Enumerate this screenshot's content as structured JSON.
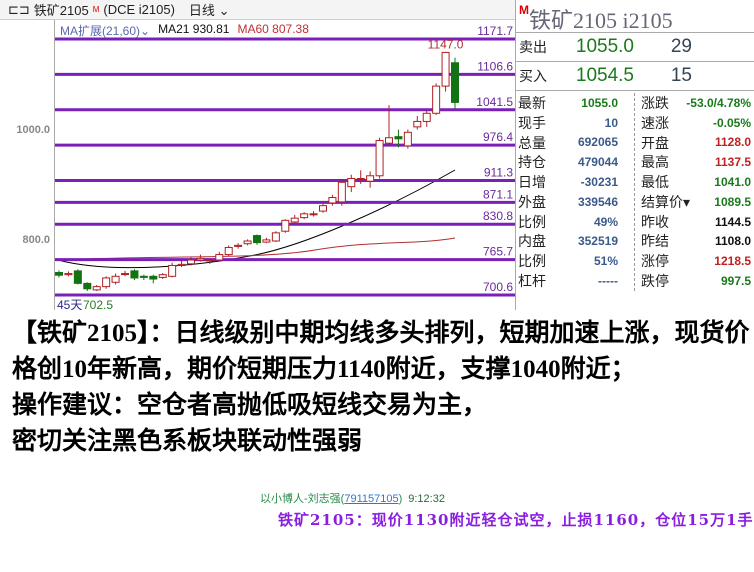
{
  "header": {
    "symbol": "铁矿2105",
    "flag": "M",
    "exchange": "(DCE i2105)",
    "period": "日线"
  },
  "indicator": {
    "name": "MA扩展(21,60)",
    "ma21": "MA21 930.81",
    "ma60": "MA60 807.38"
  },
  "axis": {
    "left_labels": [
      "1000.0",
      "800.0"
    ],
    "days": "45天",
    "low_label": "702.5",
    "high_label": "1147.0"
  },
  "levels": [
    "1171.7",
    "1106.6",
    "1041.5",
    "976.4",
    "911.3",
    "871.1",
    "830.8",
    "765.7",
    "700.6"
  ],
  "colors": {
    "level_line": "#7a1fb8",
    "up": "#b02020",
    "down": "#127312",
    "ma21": "#000000",
    "ma60": "#b03030"
  },
  "chart_data": {
    "type": "candlestick",
    "ylim": [
      700.6,
      1171.7
    ],
    "candles": [
      [
        742,
        737,
        746,
        733
      ],
      [
        738,
        740,
        744,
        735
      ],
      [
        745,
        722,
        748,
        720
      ],
      [
        722,
        712,
        724,
        708
      ],
      [
        710,
        716,
        719,
        708
      ],
      [
        716,
        732,
        735,
        712
      ],
      [
        724,
        735,
        740,
        720
      ],
      [
        740,
        740,
        745,
        735
      ],
      [
        745,
        732,
        748,
        728
      ],
      [
        735,
        733,
        738,
        728
      ],
      [
        735,
        730,
        738,
        722
      ],
      [
        733,
        738,
        741,
        730
      ],
      [
        735,
        755,
        760,
        733
      ],
      [
        755,
        757,
        765,
        752
      ],
      [
        758,
        765,
        770,
        755
      ],
      [
        765,
        768,
        775,
        762
      ],
      [
        765,
        765,
        768,
        758
      ],
      [
        765,
        775,
        780,
        762
      ],
      [
        775,
        788,
        792,
        772
      ],
      [
        790,
        792,
        796,
        786
      ],
      [
        795,
        800,
        803,
        792
      ],
      [
        810,
        797,
        812,
        793
      ],
      [
        798,
        802,
        806,
        796
      ],
      [
        800,
        815,
        818,
        798
      ],
      [
        818,
        838,
        840,
        815
      ],
      [
        835,
        842,
        848,
        832
      ],
      [
        843,
        850,
        853,
        840
      ],
      [
        850,
        850,
        855,
        845
      ],
      [
        855,
        865,
        868,
        852
      ],
      [
        870,
        880,
        885,
        865
      ],
      [
        872,
        908,
        912,
        865
      ],
      [
        900,
        915,
        922,
        890
      ],
      [
        915,
        915,
        930,
        905
      ],
      [
        910,
        920,
        928,
        898
      ],
      [
        920,
        985,
        990,
        915
      ],
      [
        980,
        990,
        1050,
        975
      ],
      [
        992,
        988,
        1005,
        972
      ],
      [
        975,
        1000,
        1005,
        970
      ],
      [
        1010,
        1020,
        1030,
        1005
      ],
      [
        1020,
        1035,
        1040,
        1010
      ],
      [
        1035,
        1085,
        1090,
        1032
      ],
      [
        1085,
        1147,
        1148,
        1075
      ],
      [
        1128,
        1055,
        1137.5,
        1041
      ]
    ]
  },
  "right": {
    "title": "铁矿2105  i2105",
    "flag": "M",
    "sell": {
      "label": "卖出",
      "price": "1055.0",
      "vol": "29"
    },
    "buy": {
      "label": "买入",
      "price": "1054.5",
      "vol": "15"
    },
    "left": [
      {
        "l": "最新",
        "v": "1055.0",
        "c": "green"
      },
      {
        "l": "现手",
        "v": "10",
        "c": "blue"
      },
      {
        "l": "总量",
        "v": "692065",
        "c": "blue"
      },
      {
        "l": "持仓",
        "v": "479044",
        "c": "blue"
      },
      {
        "l": "日增",
        "v": "-30231",
        "c": "blue"
      },
      {
        "l": "外盘",
        "v": "339546",
        "c": "blue"
      },
      {
        "l": "比例",
        "v": "49%",
        "c": "blue"
      },
      {
        "l": "内盘",
        "v": "352519",
        "c": "blue"
      },
      {
        "l": "比例",
        "v": "51%",
        "c": "blue"
      },
      {
        "l": "杠杆",
        "v": "-----",
        "c": "blue"
      }
    ],
    "right": [
      {
        "l": "涨跌",
        "v": "-53.0/4.78%",
        "c": "green"
      },
      {
        "l": "速涨",
        "v": "-0.05%",
        "c": "green"
      },
      {
        "l": "开盘",
        "v": "1128.0",
        "c": "red"
      },
      {
        "l": "最高",
        "v": "1137.5",
        "c": "red"
      },
      {
        "l": "最低",
        "v": "1041.0",
        "c": "green"
      },
      {
        "l": "结算价▾",
        "v": "1089.5",
        "c": "green"
      },
      {
        "l": "昨收",
        "v": "1144.5",
        "c": "black"
      },
      {
        "l": "昨结",
        "v": "1108.0",
        "c": "black"
      },
      {
        "l": "涨停",
        "v": "1218.5",
        "c": "red"
      },
      {
        "l": "跌停",
        "v": "997.5",
        "c": "green"
      }
    ]
  },
  "analysis": [
    "【铁矿2105】：日线级别中期均线多头排列，短期加速上涨，现货价格创10年新高，期价短期压力1140附近，支撑1040附近；",
    "操作建议：空仓者高抛低吸短线交易为主，密切关注黑色系板块联动性强弱"
  ],
  "comment": {
    "author": "以小博人-刘志强(",
    "qq": "791157105",
    "close": ")",
    "time": "9:12:32",
    "body": "铁矿2105：现价1130附近轻仓试空，止损1160，仓位15万1手"
  }
}
